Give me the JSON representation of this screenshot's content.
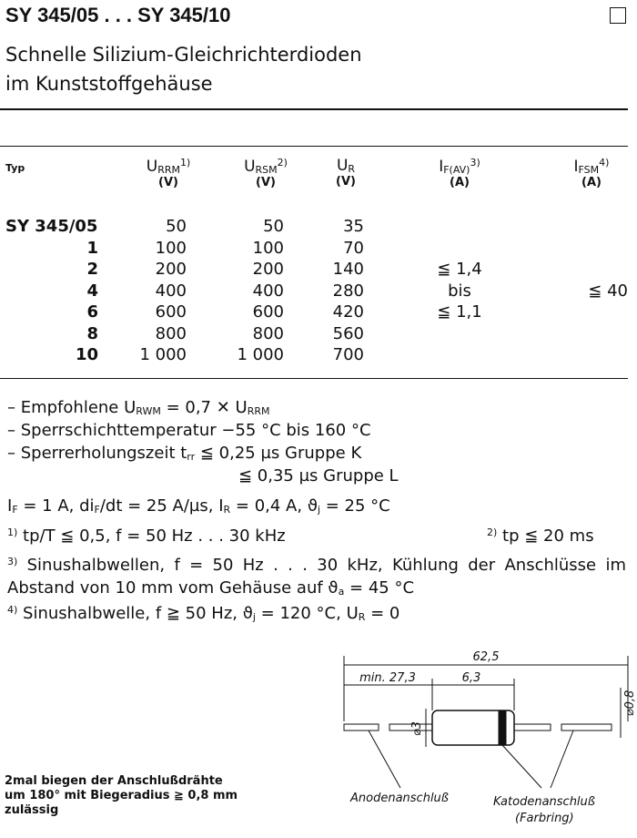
{
  "header": {
    "title": "SY 345/05 . . . SY 345/10",
    "subtitle": [
      "Schnelle Silizium-Gleichrichterdioden",
      "im Kunststoffgehäuse"
    ]
  },
  "table": {
    "columns": [
      {
        "symbol": "Typ"
      },
      {
        "symbol": "U",
        "sub": "RRM",
        "sup": "1)",
        "unit": "(V)"
      },
      {
        "symbol": "U",
        "sub": "RSM",
        "sup": "2)",
        "unit": "(V)"
      },
      {
        "symbol": "U",
        "sub": "R",
        "unit": "(V)"
      },
      {
        "symbol": "I",
        "sub": "F(AV)",
        "sup": "3)",
        "unit": "(A)"
      },
      {
        "symbol": "I",
        "sub": "FSM",
        "sup": "4)",
        "unit": "(A)"
      }
    ],
    "rows": [
      [
        "SY 345/05",
        "50",
        "50",
        "35"
      ],
      [
        "1",
        "100",
        "100",
        "70"
      ],
      [
        "2",
        "200",
        "200",
        "140"
      ],
      [
        "4",
        "400",
        "400",
        "280"
      ],
      [
        "6",
        "600",
        "600",
        "420"
      ],
      [
        "8",
        "800",
        "800",
        "560"
      ],
      [
        "10",
        "1 000",
        "1 000",
        "700"
      ]
    ],
    "if_range": [
      "≦ 1,4",
      "bis",
      "≦ 1,1"
    ],
    "ifsm": "≦ 40"
  },
  "notes": [
    [
      "– Empfohlene U",
      "RWM",
      " = 0,7 ✕ U",
      "RRM"
    ],
    [
      "– Sperrschichttemperatur −55 °C bis 160 °C"
    ],
    [
      "– Sperrerholungszeit t",
      "rr",
      " ≦ 0,25 µs Gruppe K"
    ],
    [
      "≦ 0,35 µs Gruppe L"
    ],
    [
      "I",
      "F",
      " = 1 A, di",
      "F",
      "/dt = 25 A/µs, I",
      "R",
      " = 0,4 A, ϑ",
      "j",
      " = 25 °C"
    ]
  ],
  "footnotes": [
    [
      "1)",
      " tp/T ≦ 0,5, f = 50 Hz . . . 30 kHz"
    ],
    [
      "2)",
      " tp ≦ 20 ms"
    ],
    [
      "3)",
      " Sinushalbwellen, f = 50 Hz . . . 30 kHz, Kühlung der Anschlüsse im Abstand von 10 mm vom Gehäuse auf ϑ",
      "a",
      " = 45 °C"
    ],
    [
      "4)",
      " Sinushalbwelle, f ≧ 50 Hz, ϑ",
      "j",
      " = 120 °C, U",
      "R",
      " = 0"
    ]
  ],
  "bending_note": [
    "2mal biegen der Anschlußdrähte",
    "um 180° mit Biegeradius ≧ 0,8 mm",
    "zulässig"
  ],
  "drawing": {
    "length": "62,5",
    "lead_min": "min. 27,3",
    "body_length": "6,3",
    "body_diameter": "⌀3",
    "lead_diameter": "⌀0,8",
    "anode": "Anodenanschluß",
    "cathode": "Katodenanschluß",
    "cathode_note": "(Farbring)"
  }
}
